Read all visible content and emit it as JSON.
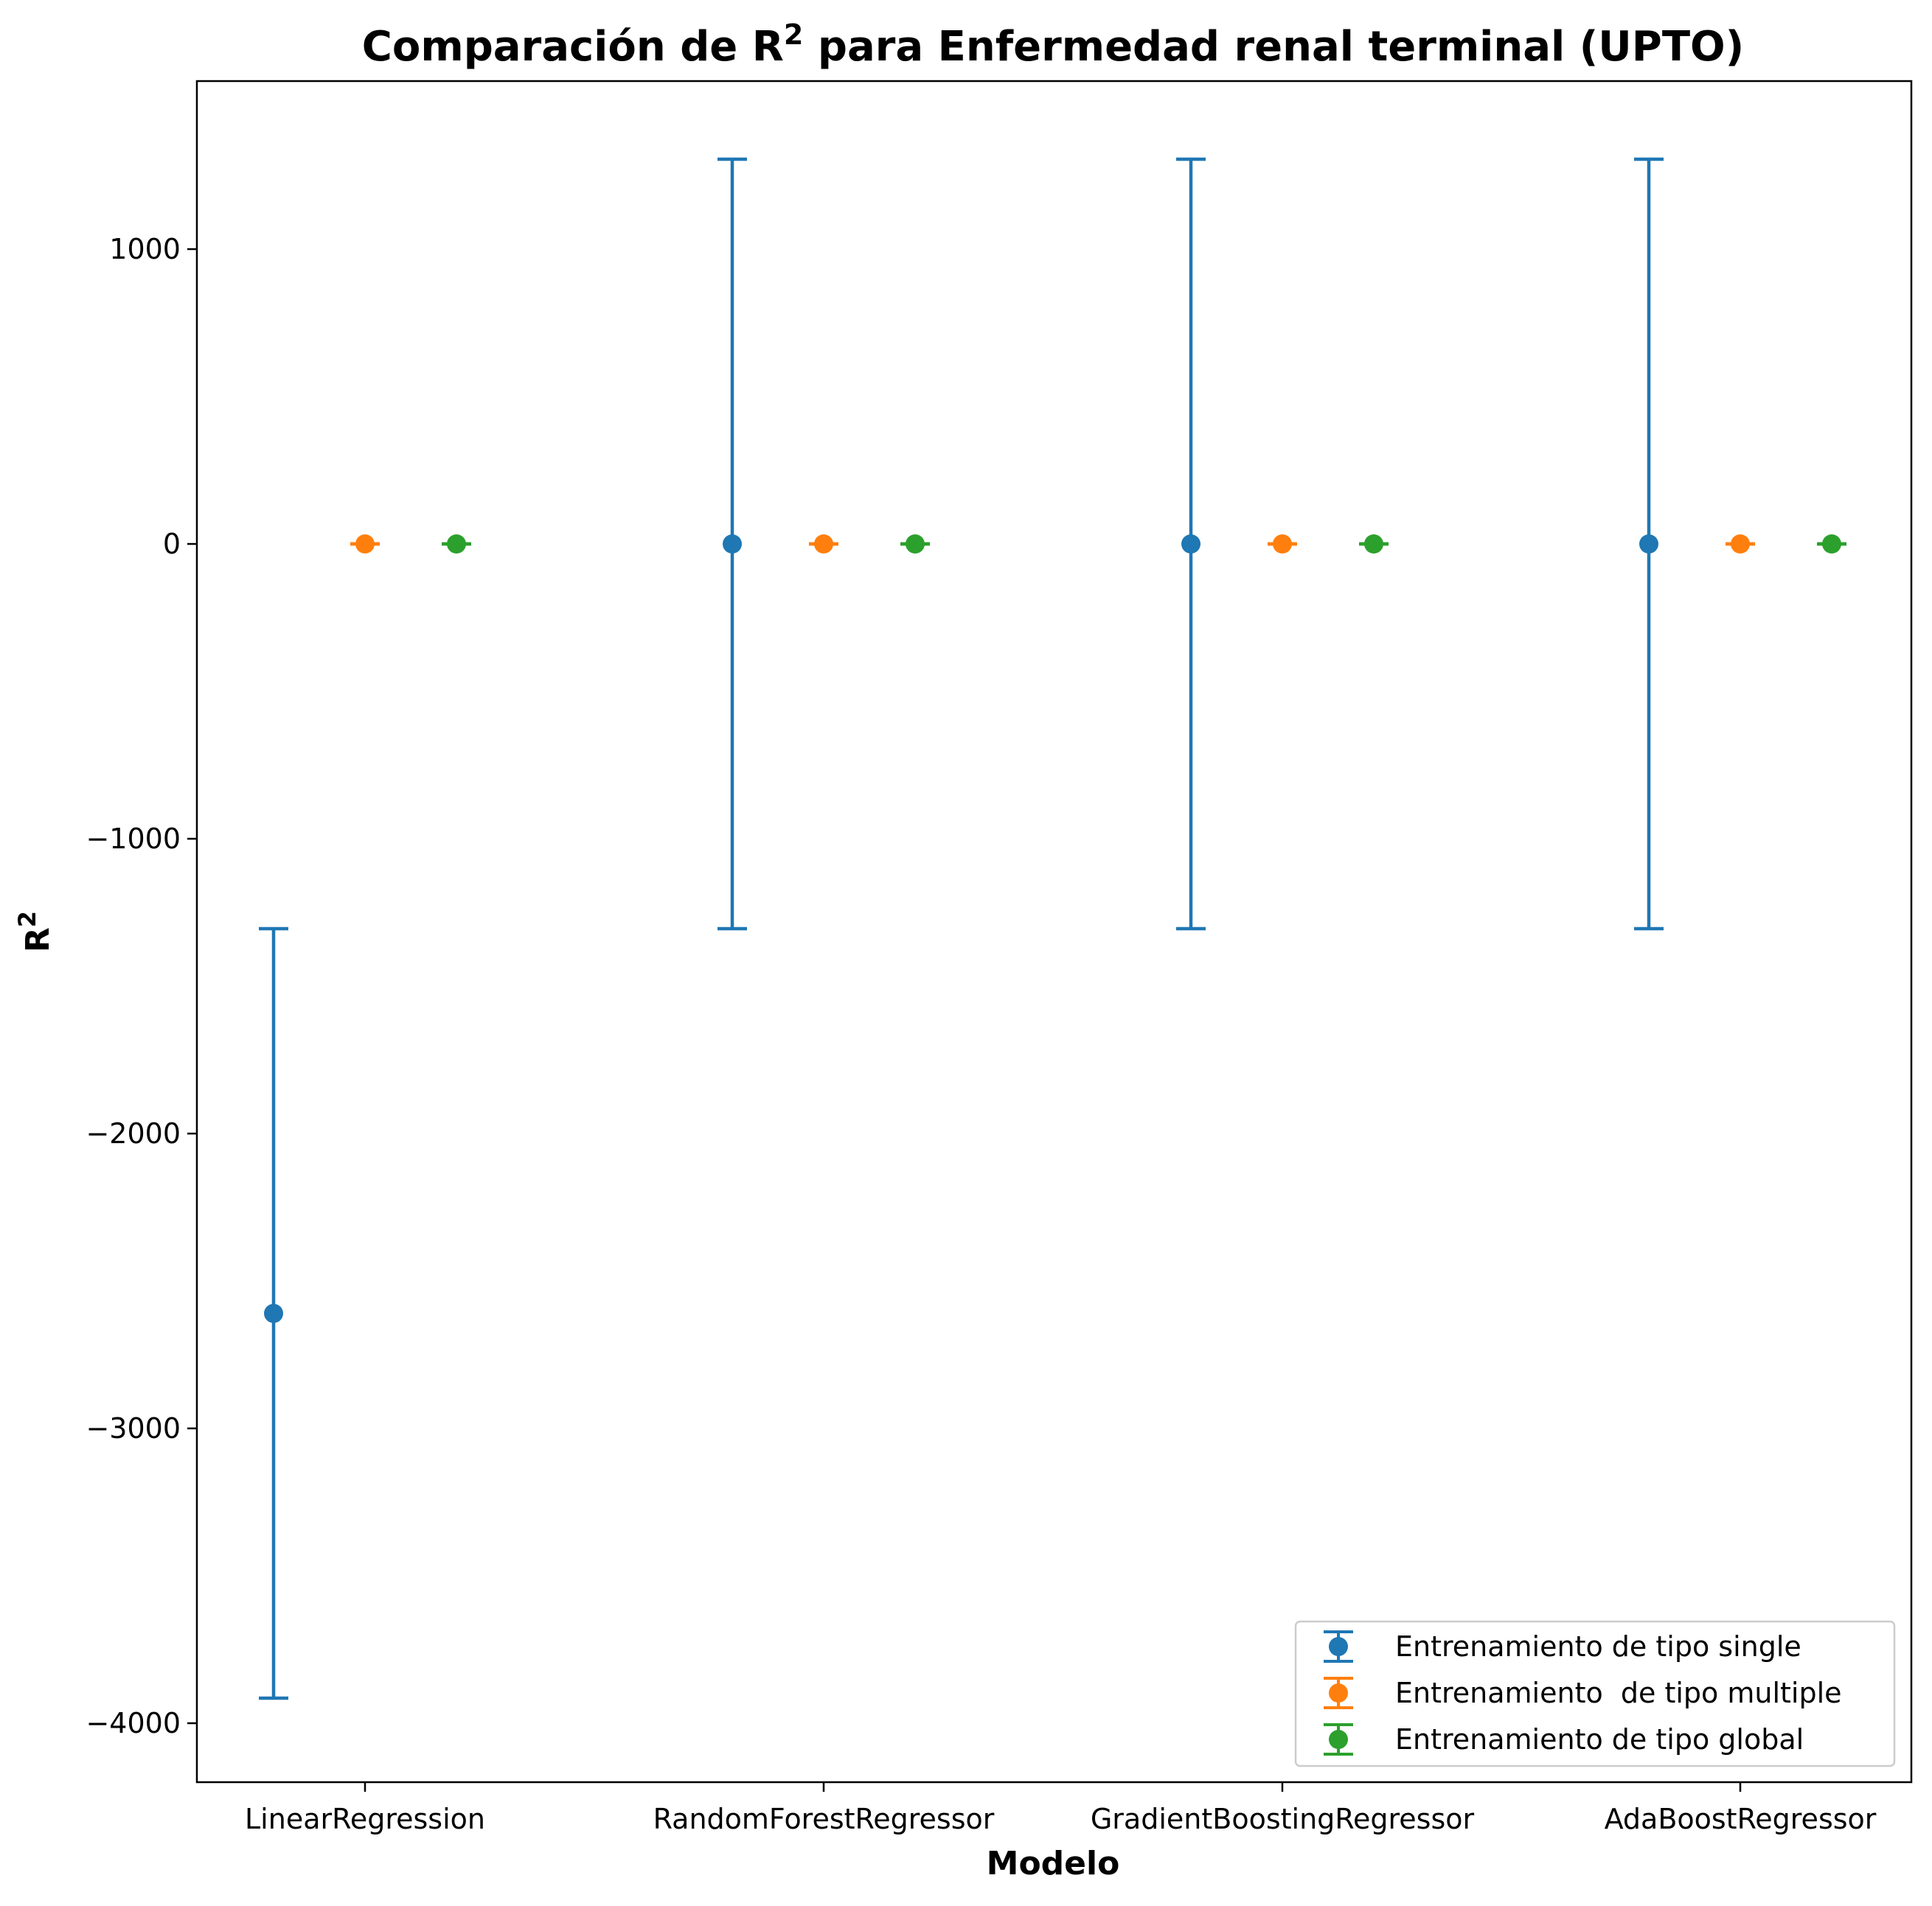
{
  "chart_data": {
    "type": "scatter",
    "title": {
      "main": "Comparación de R",
      "sup": "2",
      "rest": " para Enfermedad renal terminal (UPTO)"
    },
    "xlabel": "Modelo",
    "ylabel": {
      "main": "R",
      "sup": "2"
    },
    "ylim": [
      -4200,
      1570
    ],
    "yticks": [
      1000,
      0,
      -1000,
      -2000,
      -3000,
      -4000
    ],
    "ytick_labels": [
      "1000",
      "0",
      "−1000",
      "−2000",
      "−3000",
      "−4000"
    ],
    "categories": [
      "LinearRegression",
      "RandomForestRegressor",
      "GradientBoostingRegressor",
      "AdaBoostRegressor"
    ],
    "series": [
      {
        "name": "Entrenamiento de tipo single",
        "color": "#1f77b4",
        "values": [
          -2610,
          0,
          0,
          0
        ],
        "errors": [
          1305,
          1305,
          1305,
          1305
        ]
      },
      {
        "name": "Entrenamiento  de tipo multiple",
        "color": "#ff7f0e",
        "values": [
          0,
          0,
          0,
          0
        ],
        "errors": [
          0,
          0,
          0,
          0
        ]
      },
      {
        "name": "Entrenamiento de tipo global",
        "color": "#2ca02c",
        "values": [
          0,
          0,
          0,
          0
        ],
        "errors": [
          0,
          0,
          0,
          0
        ]
      }
    ],
    "legend_position": "lower-right",
    "grid": false
  }
}
